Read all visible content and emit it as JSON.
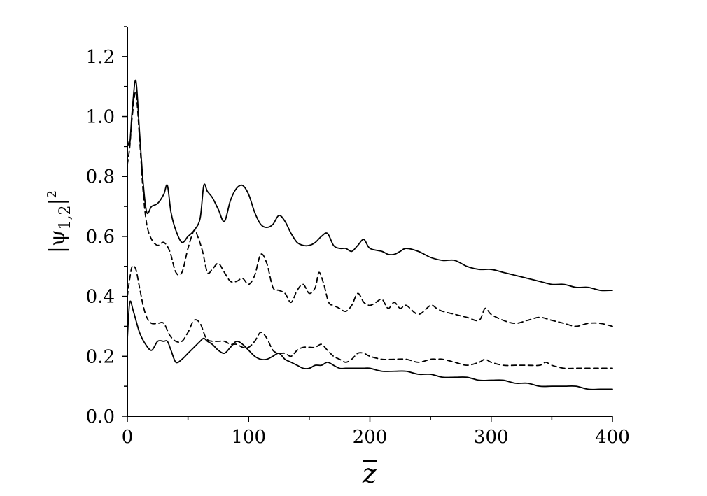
{
  "chart_data": {
    "type": "line",
    "xlabel": "z",
    "ylabel": "|ψ1,2|2",
    "ylabel_parts": {
      "main": "|ψ",
      "sub": "1,2",
      "bar": "|",
      "sup": "2"
    },
    "xlim": [
      0,
      400
    ],
    "ylim": [
      0,
      1.3
    ],
    "x_ticks": [
      0,
      100,
      200,
      300,
      400
    ],
    "x_tick_labels": [
      "0",
      "100",
      "200",
      "300",
      "400"
    ],
    "y_ticks": [
      0,
      0.2,
      0.4,
      0.6,
      0.8,
      1.0,
      1.2
    ],
    "y_tick_labels": [
      "0.0",
      "0.2",
      "0.4",
      "0.6",
      "0.8",
      "1.0",
      "1.2"
    ],
    "grid": false,
    "series": [
      {
        "style": "solid",
        "x": [
          0,
          2,
          4,
          7,
          10,
          13,
          16,
          20,
          25,
          30,
          33,
          36,
          40,
          45,
          50,
          55,
          60,
          63,
          66,
          70,
          75,
          80,
          85,
          90,
          95,
          100,
          105,
          110,
          115,
          120,
          125,
          130,
          135,
          140,
          145,
          150,
          155,
          160,
          165,
          170,
          175,
          180,
          185,
          190,
          195,
          200,
          210,
          215,
          220,
          225,
          230,
          240,
          250,
          260,
          270,
          280,
          290,
          300,
          310,
          320,
          330,
          340,
          350,
          360,
          370,
          380,
          390,
          400
        ],
        "y": [
          0.92,
          0.91,
          1.02,
          1.12,
          0.95,
          0.78,
          0.68,
          0.7,
          0.71,
          0.74,
          0.77,
          0.68,
          0.62,
          0.58,
          0.6,
          0.62,
          0.66,
          0.77,
          0.75,
          0.73,
          0.69,
          0.65,
          0.72,
          0.76,
          0.77,
          0.74,
          0.68,
          0.64,
          0.63,
          0.64,
          0.67,
          0.65,
          0.61,
          0.58,
          0.57,
          0.57,
          0.58,
          0.6,
          0.61,
          0.57,
          0.56,
          0.56,
          0.55,
          0.57,
          0.59,
          0.56,
          0.55,
          0.54,
          0.54,
          0.55,
          0.56,
          0.55,
          0.53,
          0.52,
          0.52,
          0.5,
          0.49,
          0.49,
          0.48,
          0.47,
          0.46,
          0.45,
          0.44,
          0.44,
          0.43,
          0.43,
          0.42,
          0.42
        ]
      },
      {
        "style": "dashed",
        "x": [
          0,
          2,
          4,
          7,
          10,
          13,
          16,
          20,
          25,
          30,
          35,
          40,
          45,
          50,
          55,
          58,
          62,
          66,
          70,
          75,
          80,
          85,
          90,
          95,
          100,
          105,
          110,
          115,
          120,
          125,
          130,
          135,
          140,
          145,
          150,
          155,
          158,
          162,
          166,
          170,
          175,
          180,
          185,
          190,
          195,
          200,
          205,
          210,
          215,
          220,
          225,
          230,
          240,
          250,
          255,
          260,
          270,
          280,
          290,
          295,
          300,
          310,
          320,
          330,
          340,
          350,
          360,
          370,
          380,
          390,
          400
        ],
        "y": [
          0.84,
          0.9,
          1.0,
          1.08,
          0.93,
          0.75,
          0.64,
          0.59,
          0.57,
          0.58,
          0.55,
          0.48,
          0.48,
          0.56,
          0.62,
          0.6,
          0.55,
          0.48,
          0.49,
          0.51,
          0.48,
          0.45,
          0.45,
          0.46,
          0.44,
          0.47,
          0.54,
          0.51,
          0.43,
          0.42,
          0.41,
          0.38,
          0.42,
          0.44,
          0.41,
          0.43,
          0.48,
          0.44,
          0.38,
          0.37,
          0.36,
          0.35,
          0.37,
          0.41,
          0.38,
          0.37,
          0.38,
          0.39,
          0.36,
          0.38,
          0.36,
          0.37,
          0.34,
          0.37,
          0.36,
          0.35,
          0.34,
          0.33,
          0.32,
          0.36,
          0.34,
          0.32,
          0.31,
          0.32,
          0.33,
          0.32,
          0.31,
          0.3,
          0.31,
          0.31,
          0.3
        ]
      },
      {
        "style": "dashed",
        "x": [
          0,
          2,
          4,
          7,
          10,
          13,
          16,
          20,
          25,
          30,
          35,
          40,
          45,
          50,
          55,
          60,
          65,
          70,
          75,
          80,
          85,
          90,
          95,
          100,
          105,
          110,
          115,
          120,
          125,
          130,
          135,
          140,
          145,
          150,
          155,
          160,
          165,
          170,
          175,
          180,
          185,
          190,
          195,
          200,
          210,
          220,
          230,
          240,
          250,
          255,
          260,
          270,
          280,
          290,
          295,
          300,
          310,
          320,
          330,
          340,
          345,
          350,
          360,
          370,
          380,
          390,
          400
        ],
        "y": [
          0.4,
          0.46,
          0.5,
          0.49,
          0.43,
          0.37,
          0.33,
          0.31,
          0.31,
          0.31,
          0.27,
          0.25,
          0.25,
          0.28,
          0.32,
          0.31,
          0.26,
          0.25,
          0.25,
          0.25,
          0.24,
          0.24,
          0.23,
          0.23,
          0.25,
          0.28,
          0.26,
          0.22,
          0.21,
          0.21,
          0.2,
          0.22,
          0.23,
          0.23,
          0.23,
          0.24,
          0.22,
          0.2,
          0.19,
          0.18,
          0.19,
          0.21,
          0.21,
          0.2,
          0.19,
          0.19,
          0.19,
          0.18,
          0.19,
          0.19,
          0.19,
          0.18,
          0.17,
          0.18,
          0.19,
          0.18,
          0.17,
          0.17,
          0.17,
          0.17,
          0.18,
          0.17,
          0.16,
          0.16,
          0.16,
          0.16,
          0.16
        ]
      },
      {
        "style": "solid",
        "x": [
          0,
          2,
          5,
          10,
          15,
          20,
          25,
          30,
          33,
          36,
          40,
          45,
          50,
          55,
          60,
          63,
          66,
          70,
          75,
          80,
          85,
          90,
          95,
          100,
          105,
          110,
          115,
          120,
          125,
          130,
          135,
          140,
          145,
          150,
          155,
          160,
          165,
          170,
          175,
          180,
          185,
          190,
          195,
          200,
          210,
          220,
          230,
          240,
          250,
          260,
          270,
          280,
          290,
          300,
          310,
          320,
          330,
          340,
          350,
          360,
          370,
          380,
          390,
          400
        ],
        "y": [
          0.26,
          0.38,
          0.35,
          0.28,
          0.24,
          0.22,
          0.25,
          0.25,
          0.25,
          0.22,
          0.18,
          0.19,
          0.21,
          0.23,
          0.25,
          0.26,
          0.25,
          0.24,
          0.22,
          0.21,
          0.23,
          0.25,
          0.24,
          0.22,
          0.2,
          0.19,
          0.19,
          0.2,
          0.21,
          0.19,
          0.18,
          0.17,
          0.16,
          0.16,
          0.17,
          0.17,
          0.18,
          0.17,
          0.16,
          0.16,
          0.16,
          0.16,
          0.16,
          0.16,
          0.15,
          0.15,
          0.15,
          0.14,
          0.14,
          0.13,
          0.13,
          0.13,
          0.12,
          0.12,
          0.12,
          0.11,
          0.11,
          0.1,
          0.1,
          0.1,
          0.1,
          0.09,
          0.09,
          0.09
        ]
      }
    ]
  }
}
